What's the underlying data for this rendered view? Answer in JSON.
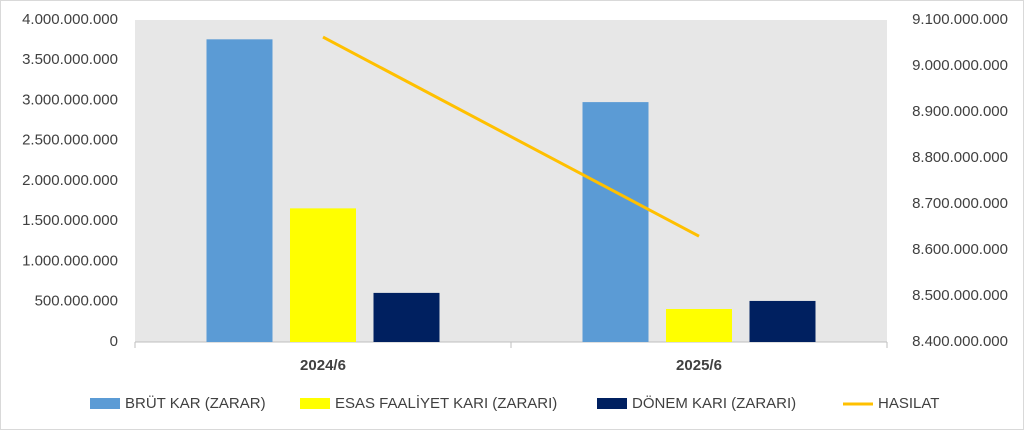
{
  "chart_data": {
    "type": "bar",
    "categories": [
      "2024/6",
      "2025/6"
    ],
    "series": [
      {
        "name": "BRÜT KAR (ZARAR)",
        "color": "#5b9bd5",
        "values": [
          3760000000,
          2980000000
        ]
      },
      {
        "name": "ESAS FAALİYET KARI (ZARARI)",
        "color": "#ffff00",
        "values": [
          1660000000,
          410000000
        ]
      },
      {
        "name": "DÖNEM KARI (ZARARI)",
        "color": "#002060",
        "values": [
          610000000,
          510000000
        ]
      },
      {
        "name": "HASILAT",
        "color": "#ffc000",
        "type": "line",
        "axis": "y2",
        "values": [
          9063000000,
          8630000000
        ]
      }
    ],
    "ylim": [
      0,
      4000000000
    ],
    "yticks": [
      0,
      {
        "value": 500000000,
        "label": "500.000.000"
      },
      {
        "value": 1000000000,
        "label": "1.000.000.000"
      },
      {
        "value": 1500000000,
        "label": "1.500.000.000"
      },
      {
        "value": 2000000000,
        "label": "2.000.000.000"
      },
      {
        "value": 2500000000,
        "label": "2.500.000.000"
      },
      {
        "value": 3000000000,
        "label": "3.000.000.000"
      },
      {
        "value": 3500000000,
        "label": "3.500.000.000"
      },
      {
        "value": 4000000000,
        "label": "4.000.000.000"
      }
    ],
    "y2lim": [
      8400000000,
      9100000000
    ],
    "y2ticks": [
      {
        "value": 8400000000,
        "label": "8.400.000.000"
      },
      {
        "value": 8500000000,
        "label": "8.500.000.000"
      },
      {
        "value": 8600000000,
        "label": "8.600.000.000"
      },
      {
        "value": 8700000000,
        "label": "8.700.000.000"
      },
      {
        "value": 8800000000,
        "label": "8.800.000.000"
      },
      {
        "value": 8900000000,
        "label": "8.900.000.000"
      },
      {
        "value": 9000000000,
        "label": "9.000.000.000"
      },
      {
        "value": 9100000000,
        "label": "9.100.000.000"
      }
    ],
    "grid": false,
    "legend": "bottom"
  }
}
